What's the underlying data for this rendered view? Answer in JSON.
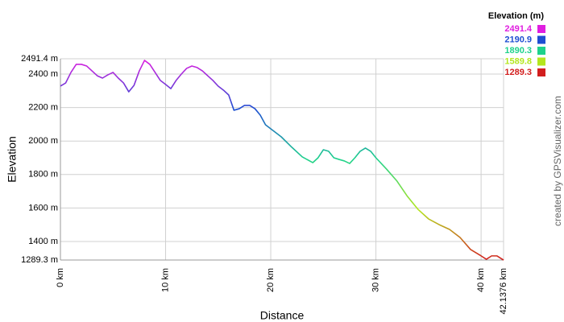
{
  "chart_data": {
    "type": "line",
    "x_label": "Distance",
    "y_label": "Elevation",
    "credit": "created by GPSVisualizer.com",
    "x": [
      0,
      0.5,
      1,
      1.5,
      2,
      2.5,
      3,
      3.5,
      4,
      4.5,
      5,
      5.5,
      6,
      6.5,
      7,
      7.5,
      8,
      8.5,
      9,
      9.5,
      10,
      10.5,
      11,
      11.5,
      12,
      12.5,
      13,
      13.5,
      14,
      14.5,
      15,
      15.5,
      16,
      16.5,
      17,
      17.5,
      18,
      18.5,
      19,
      19.5,
      20,
      21,
      22,
      23,
      24,
      24.5,
      25,
      25.5,
      26,
      26.5,
      27,
      27.5,
      28,
      28.5,
      29,
      29.5,
      30,
      31,
      32,
      33,
      34,
      35,
      36,
      37,
      38,
      39,
      40,
      40.5,
      41,
      41.5,
      42.1376
    ],
    "values": [
      2328,
      2347,
      2410,
      2458,
      2458,
      2448,
      2419,
      2390,
      2376,
      2395,
      2410,
      2376,
      2347,
      2294,
      2333,
      2419,
      2482,
      2458,
      2410,
      2362,
      2338,
      2313,
      2362,
      2400,
      2434,
      2448,
      2439,
      2419,
      2390,
      2362,
      2328,
      2304,
      2275,
      2184,
      2193,
      2213,
      2213,
      2193,
      2155,
      2097,
      2073,
      2025,
      1963,
      1905,
      1871,
      1900,
      1948,
      1939,
      1900,
      1890,
      1881,
      1866,
      1900,
      1939,
      1958,
      1939,
      1900,
      1833,
      1761,
      1669,
      1592,
      1535,
      1501,
      1472,
      1424,
      1352,
      1314,
      1294,
      1314,
      1314,
      1289
    ],
    "xlim": [
      0,
      42.1376
    ],
    "xticks": [
      {
        "value": 0,
        "label": "0 km"
      },
      {
        "value": 10,
        "label": "10 km"
      },
      {
        "value": 20,
        "label": "20 km"
      },
      {
        "value": 30,
        "label": "30 km"
      },
      {
        "value": 40,
        "label": "40 km"
      },
      {
        "value": 42.1376,
        "label": "42.1376 km"
      }
    ],
    "ylim": [
      1289.3,
      2491.4
    ],
    "yticks": [
      {
        "value": 1289.3,
        "label": "1289.3 m"
      },
      {
        "value": 1400,
        "label": "1400 m"
      },
      {
        "value": 1600,
        "label": "1600 m"
      },
      {
        "value": 1800,
        "label": "1800 m"
      },
      {
        "value": 2000,
        "label": "2000 m"
      },
      {
        "value": 2200,
        "label": "2200 m"
      },
      {
        "value": 2400,
        "label": "2400 m"
      },
      {
        "value": 2491.4,
        "label": "2491.4 m"
      }
    ],
    "grid": true,
    "color_scale": {
      "title": "Elevation (m)",
      "stops": [
        {
          "value": 2491.4,
          "color": "#e01ee0"
        },
        {
          "value": 2190.9,
          "color": "#1e4ed2"
        },
        {
          "value": 1890.3,
          "color": "#1ed28c"
        },
        {
          "value": 1589.8,
          "color": "#b4e61e"
        },
        {
          "value": 1289.3,
          "color": "#d21e1e"
        }
      ]
    }
  }
}
